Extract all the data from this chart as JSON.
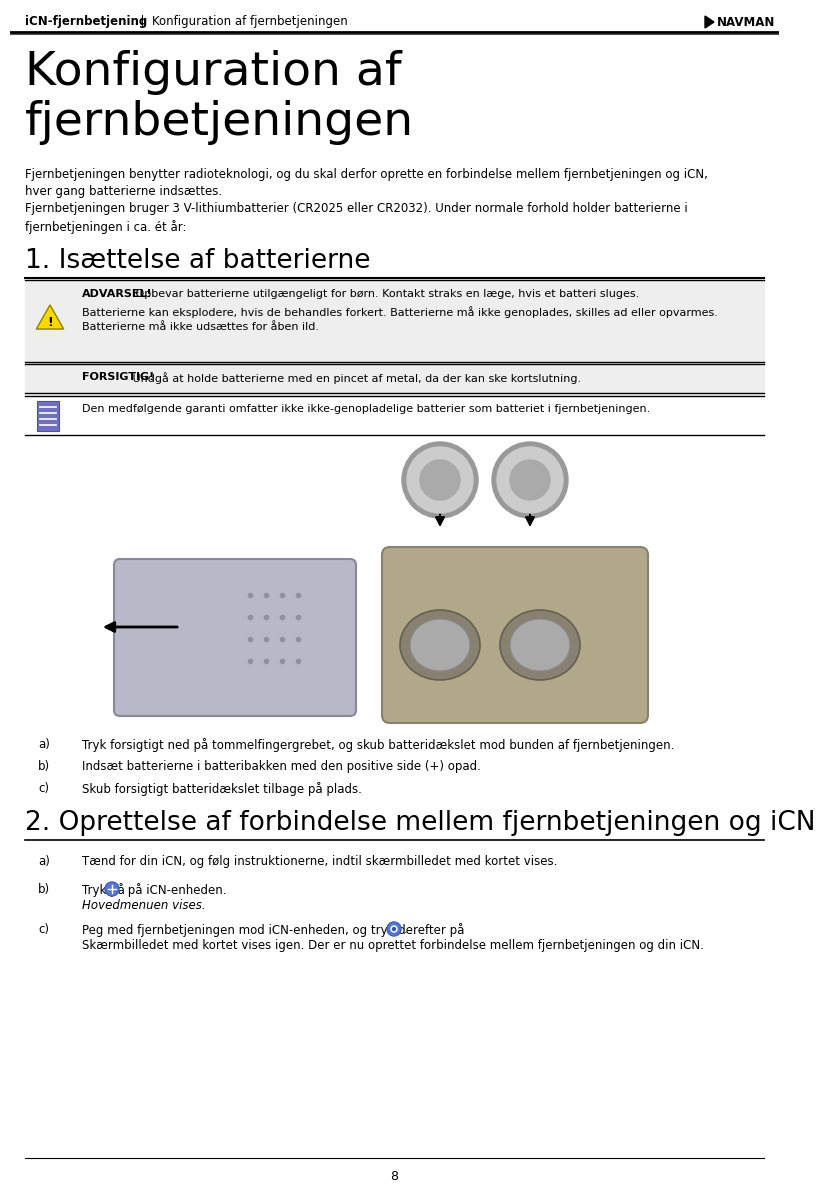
{
  "header_bold": "iCN-fjernbetjening",
  "header_sep": "  |  ",
  "header_normal": "Konfiguration af fjernbetjeningen",
  "header_logo": "NAVMAN",
  "page_title_line1": "Konfiguration af",
  "page_title_line2": "fjernbetjeningen",
  "intro_text1": "Fjernbetjeningen benytter radioteknologi, og du skal derfor oprette en forbindelse mellem fjernbetjeningen og iCN,\nhver gang batterierne indsættes.",
  "intro_text2": "Fjernbetjeningen bruger 3 V-lithiumbatterier (CR2025 eller CR2032). Under normale forhold holder batterierne i\nfjernbetjeningen i ca. ét år:",
  "section1_title": "1. Isættelse af batterierne",
  "warning_bold": "ADVARSEL!",
  "warning_text1": " Opbevar batterierne utilgængeligt for børn. Kontakt straks en læge, hvis et batteri sluges.",
  "warning_text2": "Batterierne kan eksplodere, hvis de behandles forkert. Batterierne må ikke genoplades, skilles ad eller opvarmes.\nBatterierne må ikke udsættes for åben ild.",
  "caution_bold": "FORSIGTIG!",
  "caution_text": " Undgå at holde batterierne med en pincet af metal, da der kan ske kortslutning.",
  "note_text": "Den medfølgende garanti omfatter ikke ikke-genopladelige batterier som batteriet i fjernbetjeningen.",
  "steps_a": "Tryk forsigtigt ned på tommelfingergrebet, og skub batteridækslet mod bunden af fjernbetjeningen.",
  "steps_b": "Indsæt batterierne i batteribakken med den positive side (+) opad.",
  "steps_c": "Skub forsigtigt batteridækslet tilbage på plads.",
  "section2_title": "2. Oprettelse af forbindelse mellem fjernbetjeningen og iCN",
  "steps2_a": "Tænd for din iCN, og følg instruktionerne, indtil skærmbilledet med kortet vises.",
  "steps2_b_pre": "Tryk på ",
  "steps2_b_post": " på iCN-enheden.",
  "steps2_b_sub": "Hovedmenuen vises.",
  "steps2_c_pre": "Peg med fjernbetjeningen mod iCN-enheden, og tryk derefter på ",
  "steps2_c_post": ".",
  "steps2_c_sub": "Skærmbilledet med kortet vises igen. Der er nu oprettet forbindelse mellem fjernbetjeningen og din iCN.",
  "page_number": "8",
  "bg_color": "#ffffff",
  "box_bg": "#eeeeee"
}
